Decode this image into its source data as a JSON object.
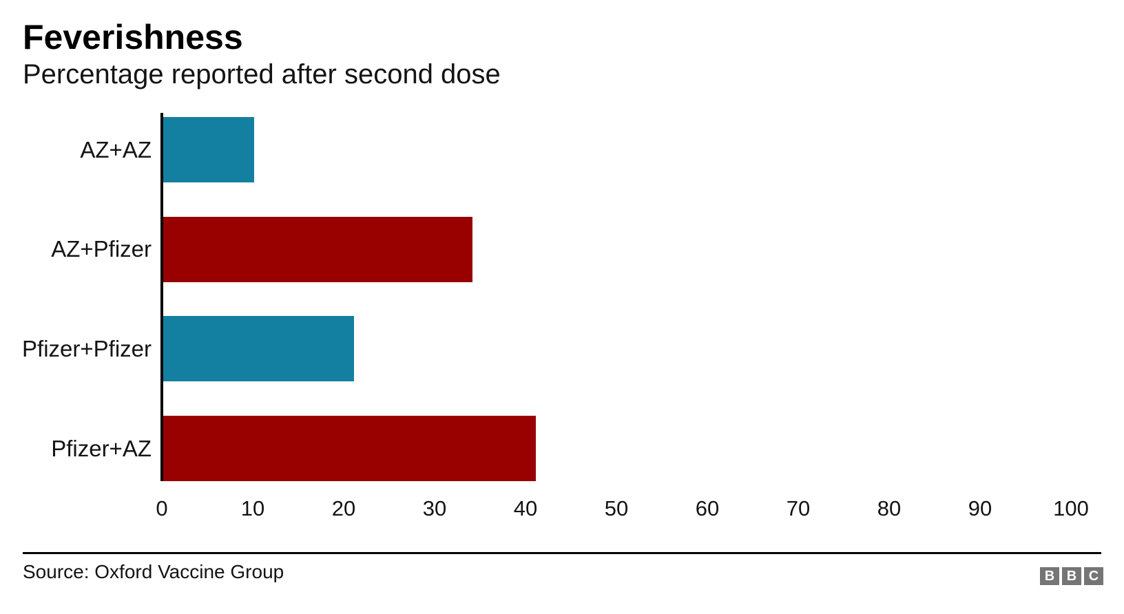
{
  "chart_data": {
    "type": "bar",
    "orientation": "horizontal",
    "title": "Feverishness",
    "subtitle": "Percentage reported after second dose",
    "categories": [
      "AZ+AZ",
      "AZ+Pfizer",
      "Pfizer+Pfizer",
      "Pfizer+AZ"
    ],
    "values": [
      10,
      34,
      21,
      41
    ],
    "bar_colors": [
      "#1380A1",
      "#990000",
      "#1380A1",
      "#990000"
    ],
    "xlabel": "",
    "ylabel": "",
    "xlim": [
      0,
      100
    ],
    "x_ticks": [
      0,
      10,
      20,
      30,
      40,
      50,
      60,
      70,
      80,
      90,
      100
    ],
    "grid": false,
    "legend": "none",
    "axis_line_color": "#000000",
    "accent_colors": {
      "teal": "#1380A1",
      "dark_red": "#990000"
    }
  },
  "footer": {
    "source": "Source: Oxford Vaccine Group",
    "logo_letters": [
      "B",
      "B",
      "C"
    ],
    "logo_color": "#757575"
  }
}
